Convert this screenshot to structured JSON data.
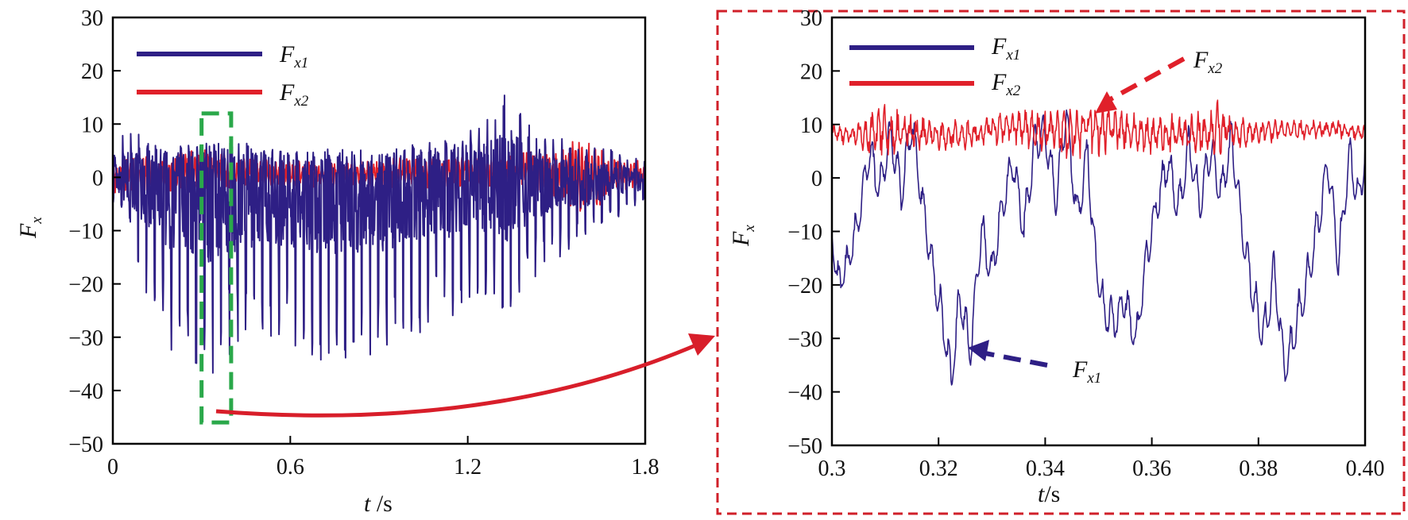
{
  "colors": {
    "series1": "#2e1f85",
    "series2": "#e0202a",
    "highlight_box": "#2aa84a",
    "zoom_frame": "#d0202a",
    "arrow": "#d81e2a"
  },
  "chart_data": [
    {
      "id": "overview",
      "type": "line",
      "xlabel_main": "t",
      "xlabel_unit": " /s",
      "ylabel_main": "F",
      "ylabel_sub": "x",
      "xlim": [
        0,
        1.8
      ],
      "ylim": [
        -50,
        30
      ],
      "xticks": [
        "0",
        "0.6",
        "1.2",
        "1.8"
      ],
      "xtick_values": [
        0,
        0.6,
        1.2,
        1.8
      ],
      "yticks": [
        "30",
        "20",
        "10",
        "0",
        "−10",
        "−20",
        "−30",
        "−40",
        "−50"
      ],
      "ytick_values": [
        30,
        20,
        10,
        0,
        -10,
        -20,
        -30,
        -40,
        -50
      ],
      "legend_position": "top-left",
      "highlight_range": {
        "x": [
          0.3,
          0.4
        ],
        "y": [
          -46,
          12
        ]
      },
      "series": [
        {
          "name_main": "F",
          "name_sub": "x1",
          "description": "oscillating signal between about -40 and 18",
          "x": [
            0,
            0.05,
            0.1,
            0.15,
            0.2,
            0.25,
            0.3,
            0.32,
            0.35,
            0.4,
            0.5,
            0.6,
            0.7,
            0.8,
            0.9,
            1.0,
            1.1,
            1.2,
            1.3,
            1.33,
            1.4,
            1.5,
            1.6,
            1.7,
            1.8
          ],
          "min": [
            -5,
            -10,
            -20,
            -28,
            -33,
            -35,
            -36,
            -39,
            -37,
            -34,
            -32,
            -31,
            -35,
            -34,
            -34,
            -30,
            -28,
            -24,
            -22,
            -27,
            -20,
            -16,
            -12,
            -8,
            -5
          ],
          "max": [
            5,
            10,
            8,
            7,
            6,
            6,
            6,
            7,
            8,
            7,
            6,
            5,
            5,
            5,
            5,
            6,
            7,
            9,
            13,
            17,
            10,
            8,
            6,
            5,
            4
          ]
        },
        {
          "name_main": "F",
          "name_sub": "x2",
          "description": "smaller oscillation around 0",
          "x": [
            0,
            0.1,
            0.2,
            0.3,
            0.4,
            0.6,
            0.8,
            1.0,
            1.2,
            1.4,
            1.5,
            1.6,
            1.65,
            1.7,
            1.8
          ],
          "min": [
            -3,
            -3,
            -3,
            -3,
            -2,
            -2,
            -2,
            -2,
            -2,
            -2,
            -4,
            -8,
            -5,
            -3,
            -2
          ],
          "max": [
            3,
            4,
            5,
            6,
            4,
            3,
            3,
            4,
            4,
            5,
            6,
            8,
            6,
            4,
            3
          ]
        }
      ]
    },
    {
      "id": "zoom",
      "type": "line",
      "xlabel_main": "t",
      "xlabel_unit": "/s",
      "ylabel_main": "F",
      "ylabel_sub": "x",
      "xlim": [
        0.3,
        0.4
      ],
      "ylim": [
        -50,
        30
      ],
      "xticks": [
        "0.3",
        "0.32",
        "0.34",
        "0.36",
        "0.38",
        "0.40"
      ],
      "xtick_values": [
        0.3,
        0.32,
        0.34,
        0.36,
        0.38,
        0.4
      ],
      "yticks": [
        "30",
        "20",
        "10",
        "0",
        "−10",
        "−20",
        "−30",
        "−40",
        "−50"
      ],
      "ytick_values": [
        30,
        20,
        10,
        0,
        -10,
        -20,
        -30,
        -40,
        -50
      ],
      "legend_position": "top-left",
      "series": [
        {
          "name_main": "F",
          "name_sub": "x1",
          "x": [
            0.3,
            0.301,
            0.303,
            0.305,
            0.307,
            0.309,
            0.311,
            0.313,
            0.315,
            0.317,
            0.319,
            0.321,
            0.3225,
            0.324,
            0.326,
            0.328,
            0.33,
            0.332,
            0.334,
            0.336,
            0.338,
            0.34,
            0.342,
            0.344,
            0.346,
            0.348,
            0.349,
            0.351,
            0.353,
            0.355,
            0.357,
            0.359,
            0.361,
            0.363,
            0.365,
            0.367,
            0.369,
            0.371,
            0.373,
            0.375,
            0.377,
            0.379,
            0.381,
            0.383,
            0.385,
            0.387,
            0.389,
            0.391,
            0.393,
            0.395,
            0.397,
            0.399,
            0.4
          ],
          "y": [
            -10,
            -20,
            -16,
            -8,
            5,
            -2,
            8,
            -3,
            10,
            -5,
            -18,
            -28,
            -39,
            -22,
            -33,
            -10,
            -18,
            -5,
            3,
            -10,
            6,
            8,
            -4,
            12,
            -8,
            5,
            -12,
            -25,
            -27,
            -23,
            -31,
            -15,
            -5,
            3,
            -6,
            6,
            -5,
            5,
            -3,
            7,
            -10,
            -22,
            -30,
            -18,
            -37,
            -28,
            -20,
            -10,
            3,
            -16,
            4,
            -5,
            6
          ],
          "min": [
            -12,
            -22,
            -18,
            -10,
            2,
            -5,
            5,
            -6,
            7,
            -8,
            -21,
            -31,
            -39,
            -25,
            -35,
            -13,
            -21,
            -8,
            0,
            -13,
            3,
            5,
            -7,
            9,
            -11,
            2,
            -15,
            -28,
            -30,
            -26,
            -33,
            -18,
            -8,
            0,
            -9,
            3,
            -8,
            2,
            -6,
            4,
            -13,
            -25,
            -33,
            -21,
            -38,
            -31,
            -23,
            -13,
            0,
            -19,
            1,
            -8,
            3
          ],
          "max": [
            -6,
            -14,
            -11,
            -3,
            10,
            3,
            13,
            2,
            14,
            0,
            -13,
            -22,
            -31,
            -16,
            -28,
            -5,
            -13,
            0,
            8,
            -5,
            11,
            13,
            1,
            14,
            -3,
            10,
            -7,
            -20,
            -22,
            -18,
            -26,
            -10,
            0,
            8,
            -1,
            11,
            0,
            10,
            2,
            12,
            -5,
            -16,
            -24,
            -12,
            -30,
            -22,
            -14,
            -4,
            8,
            -11,
            9,
            0,
            10
          ]
        },
        {
          "name_main": "F",
          "name_sub": "x2",
          "x": [
            0.3,
            0.305,
            0.31,
            0.315,
            0.32,
            0.325,
            0.33,
            0.335,
            0.34,
            0.345,
            0.348,
            0.35,
            0.355,
            0.36,
            0.365,
            0.37,
            0.372,
            0.375,
            0.38,
            0.385,
            0.39,
            0.395,
            0.4
          ],
          "min": [
            7,
            5,
            3,
            5,
            5,
            5,
            6,
            6,
            4,
            3,
            3,
            4,
            5,
            4,
            4,
            4,
            4,
            5,
            6,
            7,
            7,
            7,
            7
          ],
          "max": [
            10,
            11,
            14,
            12,
            11,
            11,
            12,
            13,
            13,
            13,
            16,
            14,
            13,
            12,
            13,
            13,
            15,
            12,
            11,
            11,
            11,
            11,
            10
          ]
        }
      ],
      "annotations": [
        {
          "main": "F",
          "sub": "x2",
          "points_to_series": "x2",
          "target": [
            0.348,
            13
          ]
        },
        {
          "main": "F",
          "sub": "x1",
          "points_to_series": "x1",
          "target": [
            0.326,
            -31
          ]
        }
      ]
    }
  ]
}
